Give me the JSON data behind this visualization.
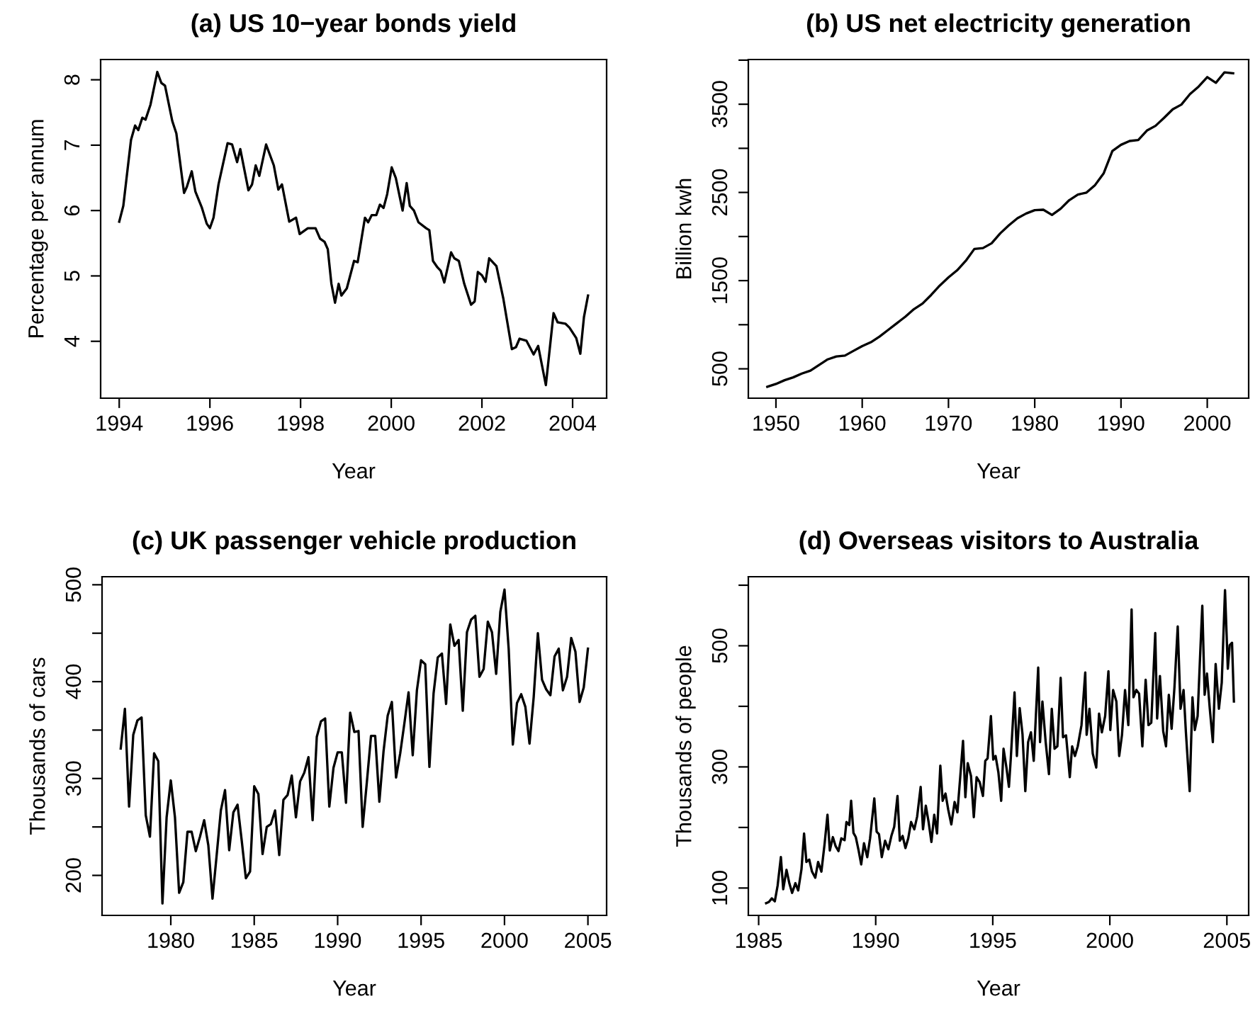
{
  "chart_data": [
    {
      "type": "line",
      "title": "(a) US 10−year bonds yield",
      "xlabel": "Year",
      "ylabel": "Percentage per annum",
      "xlim": [
        1993.59,
        2004.75
      ],
      "ylim": [
        3.13,
        8.31
      ],
      "xticks": [
        1994,
        1996,
        1998,
        2000,
        2002,
        2004
      ],
      "yticks": [
        4,
        5,
        6,
        7,
        8
      ],
      "x": [
        1994.0,
        1994.09,
        1994.26,
        1994.35,
        1994.42,
        1994.51,
        1994.58,
        1994.69,
        1994.84,
        1994.93,
        1995.01,
        1995.17,
        1995.26,
        1995.43,
        1995.49,
        1995.6,
        1995.68,
        1995.82,
        1995.93,
        1996.0,
        1996.08,
        1996.19,
        1996.39,
        1996.49,
        1996.6,
        1996.67,
        1996.85,
        1996.93,
        1997.01,
        1997.09,
        1997.24,
        1997.41,
        1997.51,
        1997.59,
        1997.75,
        1997.9,
        1997.98,
        1998.16,
        1998.33,
        1998.43,
        1998.53,
        1998.6,
        1998.68,
        1998.76,
        1998.84,
        1998.9,
        1999.02,
        1999.18,
        1999.26,
        1999.42,
        1999.49,
        1999.57,
        1999.67,
        1999.75,
        1999.83,
        1999.91,
        2000.01,
        2000.1,
        2000.25,
        2000.34,
        2000.41,
        2000.5,
        2000.6,
        2000.77,
        2000.84,
        2000.92,
        2001.02,
        2001.09,
        2001.17,
        2001.32,
        2001.39,
        2001.49,
        2001.61,
        2001.76,
        2001.84,
        2001.91,
        2002.0,
        2002.08,
        2002.16,
        2002.32,
        2002.47,
        2002.66,
        2002.75,
        2002.83,
        2002.98,
        2003.14,
        2003.24,
        2003.41,
        2003.58,
        2003.67,
        2003.84,
        2003.93,
        2004.08,
        2004.17,
        2004.25,
        2004.34
      ],
      "series": [
        {
          "color": "#000000",
          "values": [
            5.83,
            6.07,
            7.08,
            7.3,
            7.23,
            7.42,
            7.39,
            7.62,
            8.12,
            7.95,
            7.91,
            7.37,
            7.18,
            6.27,
            6.36,
            6.6,
            6.29,
            6.05,
            5.8,
            5.73,
            5.89,
            6.4,
            7.03,
            7.01,
            6.74,
            6.94,
            6.31,
            6.4,
            6.69,
            6.53,
            7.01,
            6.69,
            6.32,
            6.4,
            5.83,
            5.89,
            5.64,
            5.73,
            5.73,
            5.57,
            5.52,
            5.41,
            4.88,
            4.59,
            4.88,
            4.7,
            4.81,
            5.23,
            5.21,
            5.89,
            5.82,
            5.93,
            5.93,
            6.09,
            6.04,
            6.25,
            6.66,
            6.5,
            6.0,
            6.42,
            6.07,
            6.0,
            5.82,
            5.73,
            5.7,
            5.23,
            5.13,
            5.08,
            4.9,
            5.36,
            5.27,
            5.23,
            4.88,
            4.56,
            4.61,
            5.06,
            5.01,
            4.91,
            5.27,
            5.15,
            4.66,
            3.88,
            3.91,
            4.04,
            4.01,
            3.8,
            3.93,
            3.33,
            4.43,
            4.29,
            4.27,
            4.21,
            4.05,
            3.81,
            4.37,
            4.7
          ]
        }
      ]
    },
    {
      "type": "line",
      "title": "(b) US net electricity generation",
      "xlabel": "Year",
      "ylabel": "Billion kwh",
      "xlim": [
        1946.8,
        2004.8
      ],
      "ylim": [
        167,
        4007
      ],
      "xticks": [
        1950,
        1960,
        1970,
        1980,
        1990,
        2000
      ],
      "yticks": [
        500,
        {
          "value": 1000,
          "label": null
        },
        1500,
        {
          "value": 2000,
          "label": null
        },
        2500,
        {
          "value": 3000,
          "label": null
        },
        3500,
        {
          "value": 4000,
          "label": null
        }
      ],
      "x": [
        1949,
        1950,
        1951,
        1952,
        1953,
        1954,
        1955,
        1956,
        1957,
        1958,
        1959,
        1960,
        1961,
        1962,
        1963,
        1964,
        1965,
        1966,
        1967,
        1968,
        1969,
        1970,
        1971,
        1972,
        1973,
        1974,
        1975,
        1976,
        1977,
        1978,
        1979,
        1980,
        1981,
        1982,
        1983,
        1984,
        1985,
        1986,
        1987,
        1988,
        1989,
        1990,
        1991,
        1992,
        1993,
        1994,
        1995,
        1996,
        1997,
        1998,
        1999,
        2000,
        2001,
        2002,
        2003
      ],
      "series": [
        {
          "color": "#000000",
          "values": [
            296,
            328,
            371,
            403,
            446,
            479,
            543,
            607,
            640,
            650,
            704,
            758,
            801,
            865,
            940,
            1016,
            1091,
            1177,
            1241,
            1338,
            1445,
            1536,
            1617,
            1724,
            1859,
            1869,
            1923,
            2036,
            2127,
            2208,
            2261,
            2299,
            2304,
            2245,
            2315,
            2412,
            2476,
            2498,
            2584,
            2718,
            2970,
            3040,
            3083,
            3094,
            3201,
            3255,
            3346,
            3443,
            3496,
            3615,
            3700,
            3808,
            3743,
            3862,
            3851
          ]
        }
      ]
    },
    {
      "type": "line",
      "title": "(c) UK passenger vehicle production",
      "xlabel": "Year",
      "ylabel": "Thousands of cars",
      "xlim": [
        1975.88,
        2006.12
      ],
      "ylim": [
        158.7,
        508.3
      ],
      "xticks": [
        1980,
        1985,
        1990,
        1995,
        2000,
        2005
      ],
      "yticks": [
        200,
        {
          "value": 250,
          "label": null
        },
        300,
        {
          "value": 350,
          "label": null
        },
        400,
        {
          "value": 450,
          "label": null
        },
        500
      ],
      "x": [
        1977,
        1977.25,
        1977.5,
        1977.75,
        1978,
        1978.25,
        1978.5,
        1978.75,
        1979,
        1979.25,
        1979.5,
        1979.75,
        1980,
        1980.25,
        1980.5,
        1980.75,
        1981,
        1981.25,
        1981.5,
        1981.75,
        1982,
        1982.25,
        1982.5,
        1982.75,
        1983,
        1983.25,
        1983.5,
        1983.75,
        1984,
        1984.25,
        1984.5,
        1984.75,
        1985,
        1985.25,
        1985.5,
        1985.75,
        1986,
        1986.25,
        1986.5,
        1986.75,
        1987,
        1987.25,
        1987.5,
        1987.75,
        1988,
        1988.25,
        1988.5,
        1988.75,
        1989,
        1989.25,
        1989.5,
        1989.75,
        1990,
        1990.25,
        1990.5,
        1990.75,
        1991,
        1991.25,
        1991.5,
        1991.75,
        1992,
        1992.25,
        1992.5,
        1992.75,
        1993,
        1993.25,
        1993.5,
        1993.75,
        1994,
        1994.25,
        1994.5,
        1994.75,
        1995,
        1995.25,
        1995.5,
        1995.75,
        1996,
        1996.25,
        1996.5,
        1996.75,
        1997,
        1997.25,
        1997.5,
        1997.75,
        1998,
        1998.25,
        1998.5,
        1998.75,
        1999,
        1999.25,
        1999.5,
        1999.75,
        2000,
        2000.25,
        2000.5,
        2000.75,
        2001,
        2001.25,
        2001.5,
        2001.75,
        2002,
        2002.25,
        2002.5,
        2002.75,
        2003,
        2003.25,
        2003.5,
        2003.75,
        2004,
        2004.25,
        2004.5,
        2004.75,
        2005
      ],
      "series": [
        {
          "color": "#000000",
          "values": [
            331,
            372,
            271,
            345,
            360,
            363,
            262,
            240,
            326,
            318,
            171,
            260,
            298,
            260,
            182,
            193,
            245,
            245,
            225,
            240,
            257,
            231,
            176,
            221,
            267,
            288,
            226,
            265,
            273,
            236,
            197,
            204,
            292,
            284,
            222,
            250,
            253,
            267,
            221,
            278,
            283,
            303,
            260,
            297,
            306,
            322,
            257,
            343,
            359,
            362,
            271,
            311,
            327,
            327,
            275,
            368,
            348,
            349,
            250,
            296,
            344,
            344,
            276,
            328,
            365,
            379,
            301,
            326,
            357,
            389,
            324,
            391,
            422,
            418,
            312,
            388,
            425,
            429,
            377,
            459,
            437,
            443,
            370,
            451,
            464,
            468,
            405,
            413,
            462,
            451,
            408,
            472,
            495,
            434,
            335,
            378,
            387,
            374,
            336,
            384,
            450,
            402,
            392,
            386,
            426,
            434,
            391,
            405,
            445,
            431,
            379,
            394,
            434
          ]
        }
      ]
    },
    {
      "type": "line",
      "title": "(d) Overseas visitors to Australia",
      "xlabel": "Year",
      "ylabel": "Thousands of people",
      "xlim": [
        1984.56,
        2005.93
      ],
      "ylim": [
        54.8,
        614
      ],
      "xticks": [
        1985,
        1990,
        1995,
        2000,
        2005
      ],
      "yticks": [
        100,
        {
          "value": 200,
          "label": null
        },
        300,
        {
          "value": 400,
          "label": null
        },
        500,
        {
          "value": 600,
          "label": null
        }
      ],
      "x": [
        1985.32,
        1985.44,
        1985.56,
        1985.69,
        1985.81,
        1985.95,
        1986.05,
        1986.19,
        1986.31,
        1986.43,
        1986.57,
        1986.69,
        1986.83,
        1986.94,
        1987.04,
        1987.16,
        1987.28,
        1987.42,
        1987.54,
        1987.68,
        1987.82,
        1987.94,
        1988.04,
        1988.17,
        1988.29,
        1988.41,
        1988.53,
        1988.67,
        1988.75,
        1988.87,
        1988.95,
        1989.05,
        1989.15,
        1989.27,
        1989.38,
        1989.5,
        1989.64,
        1989.76,
        1989.94,
        1990.04,
        1990.14,
        1990.26,
        1990.4,
        1990.54,
        1990.67,
        1990.79,
        1990.93,
        1991.03,
        1991.15,
        1991.27,
        1991.39,
        1991.51,
        1991.65,
        1991.77,
        1991.92,
        1992.02,
        1992.14,
        1992.26,
        1992.38,
        1992.5,
        1992.62,
        1992.76,
        1992.86,
        1992.98,
        1993.1,
        1993.23,
        1993.37,
        1993.49,
        1993.61,
        1993.73,
        1993.83,
        1993.93,
        1994.07,
        1994.19,
        1994.31,
        1994.44,
        1994.58,
        1994.68,
        1994.78,
        1994.92,
        1995.02,
        1995.12,
        1995.24,
        1995.36,
        1995.46,
        1995.58,
        1995.69,
        1995.77,
        1995.93,
        1996.03,
        1996.15,
        1996.27,
        1996.39,
        1996.51,
        1996.63,
        1996.75,
        1996.94,
        1997.02,
        1997.12,
        1997.26,
        1997.4,
        1997.52,
        1997.64,
        1997.76,
        1997.9,
        1998.0,
        1998.13,
        1998.29,
        1998.39,
        1998.51,
        1998.63,
        1998.79,
        1998.95,
        1999.01,
        1999.13,
        1999.27,
        1999.42,
        1999.54,
        1999.66,
        1999.8,
        1999.94,
        2000.02,
        2000.14,
        2000.28,
        2000.4,
        2000.52,
        2000.65,
        2000.79,
        2000.93,
        2001.01,
        2001.13,
        2001.25,
        2001.39,
        2001.53,
        2001.65,
        2001.77,
        2001.94,
        2002.02,
        2002.14,
        2002.28,
        2002.4,
        2002.52,
        2002.64,
        2002.76,
        2002.9,
        2003.02,
        2003.15,
        2003.25,
        2003.41,
        2003.53,
        2003.63,
        2003.75,
        2003.87,
        2003.95,
        2004.05,
        2004.15,
        2004.27,
        2004.4,
        2004.52,
        2004.66,
        2004.78,
        2004.92,
        2005.04,
        2005.12,
        2005.22,
        2005.3
      ],
      "series": [
        {
          "color": "#000000",
          "values": [
            75,
            77,
            83,
            78,
            104,
            151,
            98,
            130,
            108,
            92,
            108,
            96,
            131,
            190,
            143,
            147,
            127,
            117,
            143,
            127,
            174,
            221,
            162,
            184,
            169,
            161,
            182,
            179,
            209,
            204,
            244,
            191,
            184,
            162,
            139,
            174,
            151,
            182,
            248,
            193,
            189,
            151,
            178,
            164,
            186,
            201,
            252,
            178,
            186,
            166,
            182,
            209,
            197,
            218,
            267,
            197,
            236,
            209,
            176,
            221,
            190,
            302,
            244,
            256,
            229,
            205,
            242,
            225,
            283,
            343,
            250,
            306,
            285,
            217,
            283,
            275,
            252,
            310,
            314,
            384,
            312,
            318,
            291,
            244,
            330,
            300,
            267,
            314,
            423,
            318,
            397,
            354,
            260,
            341,
            357,
            310,
            464,
            341,
            408,
            341,
            288,
            396,
            330,
            334,
            447,
            349,
            352,
            283,
            334,
            318,
            334,
            369,
            456,
            353,
            396,
            322,
            299,
            388,
            357,
            384,
            458,
            361,
            427,
            408,
            318,
            353,
            427,
            369,
            560,
            415,
            427,
            421,
            334,
            444,
            369,
            373,
            521,
            380,
            450,
            359,
            334,
            419,
            363,
            431,
            532,
            396,
            427,
            357,
            260,
            415,
            361,
            384,
            496,
            566,
            419,
            454,
            396,
            341,
            470,
            396,
            439,
            592,
            462,
            501,
            505,
            408
          ]
        }
      ]
    }
  ]
}
